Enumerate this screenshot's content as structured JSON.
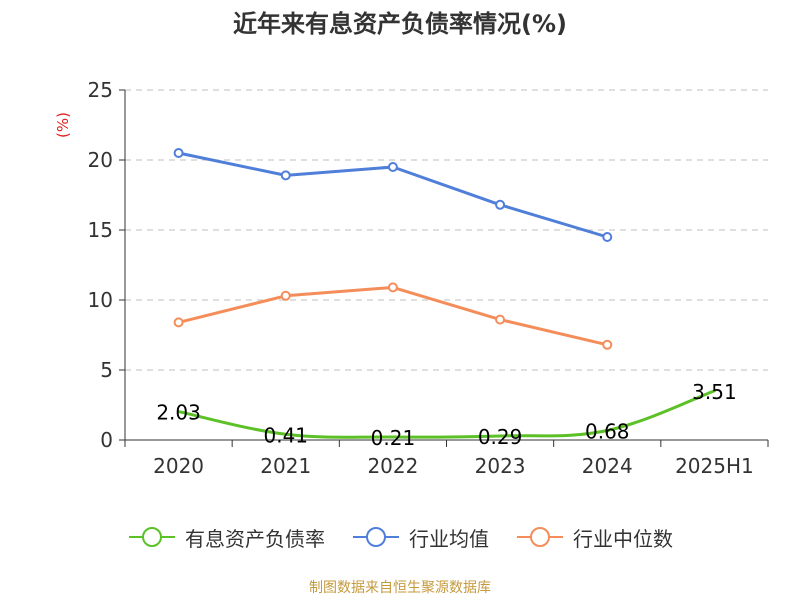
{
  "title": "近年来有息资产负债率情况(%)",
  "footer": "制图数据来自恒生聚源数据库",
  "chart_data": {
    "type": "line",
    "title": "近年来有息资产负债率情况(%)",
    "ylabel": "(%)",
    "xlabel": "",
    "ylim": [
      0,
      25
    ],
    "yticks": [
      0,
      5,
      10,
      15,
      20,
      25
    ],
    "grid": true,
    "legend_position": "bottom",
    "categories": [
      "2020",
      "2021",
      "2022",
      "2023",
      "2024",
      "2025H1"
    ],
    "series": [
      {
        "name": "有息资产负债率",
        "color": "#5cc126",
        "values": [
          2.03,
          0.41,
          0.21,
          0.29,
          0.68,
          3.51
        ],
        "labels": [
          "2.03",
          "0.41",
          "0.21",
          "0.29",
          "0.68",
          "3.51"
        ],
        "smooth": true,
        "show_markers": false
      },
      {
        "name": "行业均值",
        "color": "#4f7fd9",
        "values": [
          20.5,
          18.9,
          19.5,
          16.8,
          14.5,
          null
        ],
        "show_markers": true
      },
      {
        "name": "行业中位数",
        "color": "#f48d5a",
        "values": [
          8.4,
          10.3,
          10.9,
          8.6,
          6.8,
          null
        ],
        "show_markers": true
      }
    ]
  }
}
